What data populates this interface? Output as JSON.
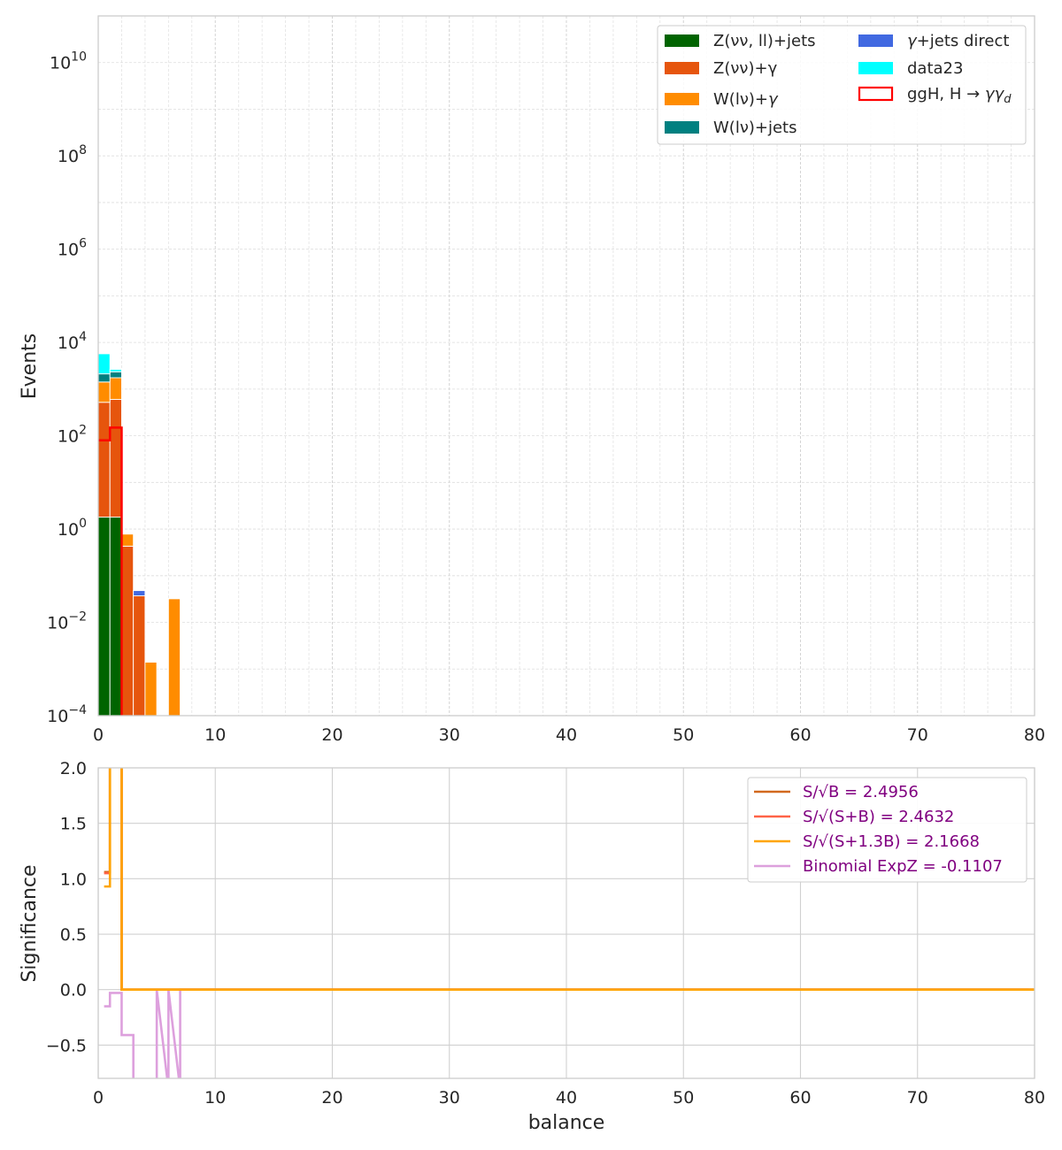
{
  "chart_data": [
    {
      "type": "bar",
      "subtype": "stacked-histogram",
      "xlabel": "",
      "ylabel": "Events",
      "xlim": [
        0,
        80
      ],
      "ylim": [
        0.0001,
        100000000000
      ],
      "yscale": "log",
      "grid": true,
      "bin_width": 1,
      "x_ticks": [
        "0",
        "10",
        "20",
        "30",
        "40",
        "50",
        "60",
        "70",
        "80"
      ],
      "y_ticks": [
        {
          "base": "10",
          "exp": "−4",
          "value": 0.0001
        },
        {
          "base": "10",
          "exp": "−2",
          "value": 0.01
        },
        {
          "base": "10",
          "exp": "0",
          "value": 1
        },
        {
          "base": "10",
          "exp": "2",
          "value": 100
        },
        {
          "base": "10",
          "exp": "4",
          "value": 10000
        },
        {
          "base": "10",
          "exp": "6",
          "value": 1000000
        },
        {
          "base": "10",
          "exp": "8",
          "value": 100000000
        },
        {
          "base": "10",
          "exp": "10",
          "value": 10000000000
        }
      ],
      "legend_position": "top-right",
      "stack_order": [
        "Z(νν, ll)+jets",
        "Z(νν)+γ",
        "W(lν)+γ",
        "W(lν)+jets",
        "γ+jets direct",
        "data23"
      ],
      "series": [
        {
          "name": "Z(νν, ll)+jets",
          "legend": [
            "Z(νν, ll)+jets"
          ],
          "color": "#006400",
          "kind": "stack",
          "bins": [
            [
              0,
              1.8
            ],
            [
              1,
              1.8
            ]
          ]
        },
        {
          "name": "Z(νν)+γ",
          "legend": [
            "Z(νν)+γ"
          ],
          "color": "#E6550D",
          "kind": "stack",
          "bins": [
            [
              0,
              520
            ],
            [
              1,
              600
            ],
            [
              2,
              0.43
            ],
            [
              3,
              0.037
            ]
          ]
        },
        {
          "name": "W(lν)+γ",
          "legend": [
            "W(lν)+",
            "γ"
          ],
          "color": "#FF8C00",
          "kind": "stack",
          "bins": [
            [
              0,
              900
            ],
            [
              1,
              1150
            ],
            [
              2,
              0.35
            ],
            [
              4,
              0.0014
            ],
            [
              6,
              0.032
            ]
          ]
        },
        {
          "name": "W(lν)+jets",
          "legend": [
            "W(lν)+jets"
          ],
          "color": "#008080",
          "kind": "stack",
          "bins": [
            [
              0,
              700
            ],
            [
              1,
              600
            ]
          ]
        },
        {
          "name": "γ+jets direct",
          "legend": [
            "γ",
            "+jets direct"
          ],
          "color": "#4169E1",
          "kind": "stack",
          "bins": [
            [
              3,
              0.011
            ]
          ]
        },
        {
          "name": "data23",
          "legend": [
            "data23"
          ],
          "color": "#00FFFF",
          "kind": "stack",
          "bins": [
            [
              0,
              3600
            ],
            [
              1,
              300
            ]
          ]
        },
        {
          "name": "ggH, H→γγd",
          "legend": [
            "ggH, H",
            "→",
            "γγ",
            "d"
          ],
          "color": "#FF0000",
          "kind": "step",
          "bins": [
            [
              0,
              80
            ],
            [
              1,
              150
            ]
          ]
        }
      ]
    },
    {
      "type": "line",
      "subtype": "step",
      "xlabel": "balance",
      "ylabel": "Significance",
      "xlim": [
        0,
        80
      ],
      "ylim": [
        -0.8,
        2.0
      ],
      "grid": true,
      "x_ticks": [
        "0",
        "10",
        "20",
        "30",
        "40",
        "50",
        "60",
        "70",
        "80"
      ],
      "y_ticks": [
        {
          "label": "−0.5",
          "value": -0.5
        },
        {
          "label": "0.0",
          "value": 0.0
        },
        {
          "label": "0.5",
          "value": 0.5
        },
        {
          "label": "1.0",
          "value": 1.0
        },
        {
          "label": "1.5",
          "value": 1.5
        },
        {
          "label": "2.0",
          "value": 2.0
        }
      ],
      "legend_position": "top-right",
      "series": [
        {
          "name": "S/√B = 2.4956",
          "color": "#D2691E",
          "x": [
            0.5,
            1,
            1,
            2,
            2,
            80
          ],
          "y": [
            1.06,
            1.06,
            2.5,
            2.5,
            0,
            0
          ]
        },
        {
          "name": "S/√(S+B) = 2.4632",
          "color": "#FF6347",
          "x": [
            0.5,
            1,
            1,
            2,
            2,
            80
          ],
          "y": [
            1.05,
            1.05,
            2.5,
            2.5,
            0,
            0
          ]
        },
        {
          "name": "S/√(S+1.3B) = 2.1668",
          "color": "#FFA500",
          "x": [
            0.5,
            1,
            1,
            2,
            2,
            80
          ],
          "y": [
            0.93,
            0.93,
            2.5,
            2.5,
            0,
            0
          ]
        },
        {
          "name": "Binomial ExpZ = -0.1107",
          "color": "#DDA0DD",
          "x": [
            0.5,
            1,
            1,
            2,
            2,
            3,
            3,
            5,
            5,
            6,
            6,
            7,
            7,
            79.5
          ],
          "y": [
            -0.15,
            -0.15,
            -0.03,
            -0.03,
            -0.41,
            -0.41,
            -0.9,
            -0.9,
            0,
            -0.9,
            0,
            -0.9,
            0,
            0
          ]
        }
      ]
    }
  ]
}
